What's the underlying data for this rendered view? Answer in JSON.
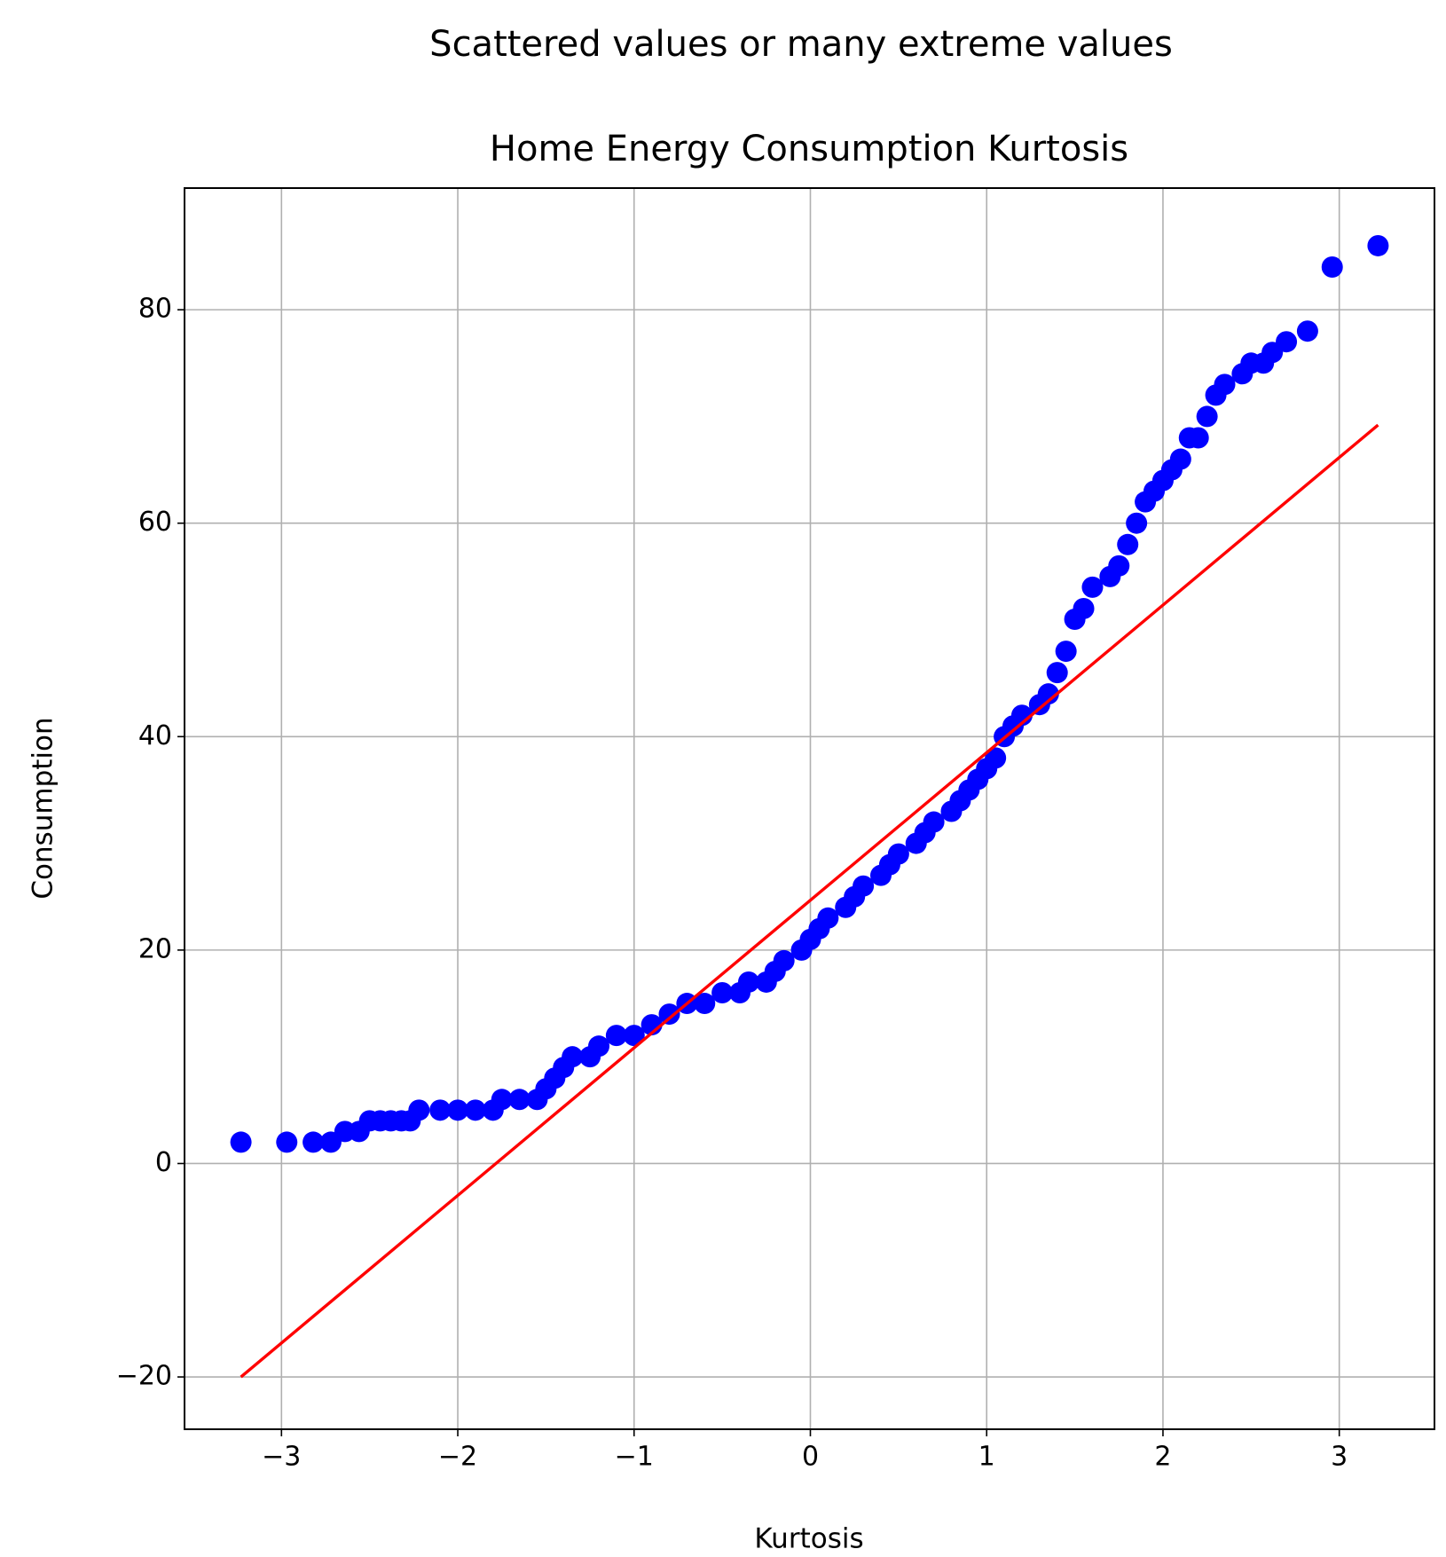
{
  "chart_data": {
    "type": "scatter",
    "suptitle": "Scattered values or many extreme values",
    "title": "Home Energy Consumption Kurtosis",
    "xlabel": "Kurtosis",
    "ylabel": "Consumption",
    "xlim": [
      -3.55,
      3.54
    ],
    "ylim": [
      -24.9,
      91.4
    ],
    "xticks": [
      {
        "value": -3,
        "label": "−3"
      },
      {
        "value": -2,
        "label": "−2"
      },
      {
        "value": -1,
        "label": "−1"
      },
      0,
      1,
      2,
      3
    ],
    "yticks": [
      {
        "value": -20,
        "label": "−20"
      },
      0,
      20,
      40,
      60,
      80
    ],
    "grid": true,
    "series": [
      {
        "type": "scatter",
        "color": "#0000ff",
        "x": [
          -3.23,
          -2.97,
          -2.82,
          -2.72,
          -2.64,
          -2.56,
          -2.5,
          -2.44,
          -2.38,
          -2.32,
          -2.27,
          -2.22,
          -2.1,
          -2.0,
          -1.9,
          -1.8,
          -1.75,
          -1.65,
          -1.55,
          -1.5,
          -1.45,
          -1.4,
          -1.35,
          -1.25,
          -1.2,
          -1.1,
          -1.0,
          -0.9,
          -0.8,
          -0.7,
          -0.6,
          -0.5,
          -0.4,
          -0.35,
          -0.25,
          -0.2,
          -0.15,
          -0.05,
          0.0,
          0.05,
          0.1,
          0.2,
          0.25,
          0.3,
          0.4,
          0.45,
          0.5,
          0.6,
          0.65,
          0.7,
          0.8,
          0.85,
          0.9,
          0.95,
          1.0,
          1.05,
          1.1,
          1.15,
          1.2,
          1.3,
          1.35,
          1.4,
          1.45,
          1.5,
          1.55,
          1.6,
          1.7,
          1.75,
          1.8,
          1.85,
          1.9,
          1.95,
          2.0,
          2.05,
          2.1,
          2.15,
          2.2,
          2.25,
          2.3,
          2.35,
          2.45,
          2.5,
          2.57,
          2.62,
          2.7,
          2.82,
          2.96,
          3.22
        ],
        "values": [
          2,
          2,
          2,
          2,
          3,
          3,
          4,
          4,
          4,
          4,
          4,
          5,
          5,
          5,
          5,
          5,
          6,
          6,
          6,
          7,
          8,
          9,
          10,
          10,
          11,
          12,
          12,
          13,
          14,
          15,
          15,
          16,
          16,
          17,
          17,
          18,
          19,
          20,
          21,
          22,
          23,
          24,
          25,
          26,
          27,
          28,
          29,
          30,
          31,
          32,
          33,
          34,
          35,
          36,
          37,
          38,
          40,
          41,
          42,
          43,
          44,
          46,
          48,
          51,
          52,
          54,
          55,
          56,
          58,
          60,
          62,
          63,
          64,
          65,
          66,
          68,
          68,
          70,
          72,
          73,
          74,
          75,
          75,
          76,
          77,
          78,
          84,
          86
        ]
      },
      {
        "type": "line",
        "color": "#ff0000",
        "x": [
          -3.23,
          3.22
        ],
        "values": [
          -20,
          69.2
        ]
      }
    ]
  }
}
